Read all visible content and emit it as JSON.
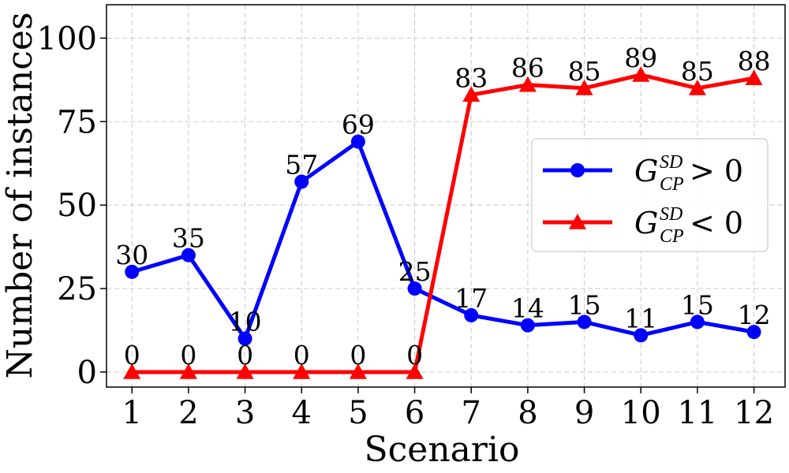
{
  "chart_data": {
    "type": "line",
    "xlabel": "Scenario",
    "ylabel": "Number of instances",
    "x": [
      1,
      2,
      3,
      4,
      5,
      6,
      7,
      8,
      9,
      10,
      11,
      12
    ],
    "xticks": [
      "1",
      "2",
      "3",
      "4",
      "5",
      "6",
      "7",
      "8",
      "9",
      "10",
      "11",
      "12"
    ],
    "yticks": [
      "0",
      "25",
      "50",
      "75",
      "100"
    ],
    "xlim": [
      0.55,
      12.55
    ],
    "ylim": [
      -4.5,
      110
    ],
    "grid": true,
    "legend_position": "center-right",
    "series": [
      {
        "name": "G_CP^SD > 0",
        "legend_main": "G",
        "legend_sup": "SD",
        "legend_sub": "CP",
        "legend_rel": " > 0",
        "marker": "circle",
        "color": "#0000ff",
        "values": [
          30,
          35,
          10,
          57,
          69,
          25,
          17,
          14,
          15,
          11,
          15,
          12
        ],
        "labels": [
          "30",
          "35",
          "10",
          "57",
          "69",
          "25",
          "17",
          "14",
          "15",
          "11",
          "15",
          "12"
        ]
      },
      {
        "name": "G_CP^SD < 0",
        "legend_main": "G",
        "legend_sup": "SD",
        "legend_sub": "CP",
        "legend_rel": " < 0",
        "marker": "triangle",
        "color": "#ff0000",
        "values": [
          0,
          0,
          0,
          0,
          0,
          0,
          83,
          86,
          85,
          89,
          85,
          88
        ],
        "labels": [
          "0",
          "0",
          "0",
          "0",
          "0",
          "0",
          "83",
          "86",
          "85",
          "89",
          "85",
          "88"
        ]
      }
    ]
  }
}
